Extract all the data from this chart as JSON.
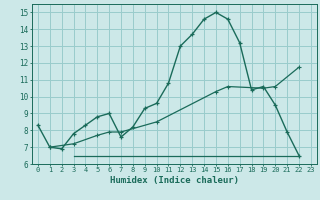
{
  "xlabel": "Humidex (Indice chaleur)",
  "bg_color": "#cce8e8",
  "grid_color": "#99cccc",
  "line_color": "#1a6b5a",
  "xlim": [
    -0.5,
    23.5
  ],
  "ylim": [
    6.0,
    15.5
  ],
  "xticks": [
    0,
    1,
    2,
    3,
    4,
    5,
    6,
    7,
    8,
    9,
    10,
    11,
    12,
    13,
    14,
    15,
    16,
    17,
    18,
    19,
    20,
    21,
    22,
    23
  ],
  "yticks": [
    6,
    7,
    8,
    9,
    10,
    11,
    12,
    13,
    14,
    15
  ],
  "curve1_x": [
    0,
    1,
    2,
    3,
    4,
    5,
    6,
    7,
    8,
    9,
    10,
    11,
    12,
    13,
    14,
    15,
    16,
    17,
    18,
    19,
    20,
    21,
    22
  ],
  "curve1_y": [
    8.3,
    7.0,
    6.9,
    7.8,
    8.3,
    8.8,
    9.0,
    7.6,
    8.2,
    9.3,
    9.6,
    10.8,
    13.0,
    13.7,
    14.6,
    15.0,
    14.6,
    13.2,
    10.4,
    10.6,
    9.5,
    7.9,
    6.5
  ],
  "curve2_x": [
    1,
    3,
    5,
    6,
    7,
    10,
    15,
    16,
    19,
    20,
    22
  ],
  "curve2_y": [
    7.0,
    7.2,
    7.7,
    7.9,
    7.9,
    8.5,
    10.3,
    10.6,
    10.5,
    10.6,
    11.75
  ],
  "curve3_x": [
    3,
    19,
    22
  ],
  "curve3_y": [
    6.5,
    6.5,
    6.5
  ]
}
